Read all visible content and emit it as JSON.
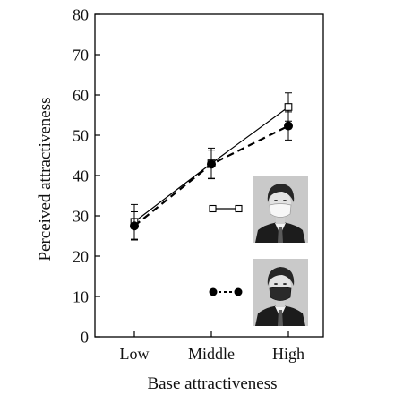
{
  "chart_data": {
    "type": "line",
    "xlabel": "Base attractiveness",
    "ylabel": "Perceived attractiveness",
    "categories": [
      "Low",
      "Middle",
      "High"
    ],
    "ylim": [
      0,
      80
    ],
    "yticks": [
      0,
      10,
      20,
      30,
      40,
      50,
      60,
      70,
      80
    ],
    "grid": false,
    "legend_placement": "lower-right (marker samples beside face photos)",
    "series": [
      {
        "key": "white-mask",
        "line_style": "solid",
        "marker": "open-square",
        "legend_image": "face photo wearing a white mask",
        "values": [
          28.5,
          43,
          57
        ],
        "error": [
          4.3,
          3.8,
          3.5
        ]
      },
      {
        "key": "black-mask",
        "line_style": "dashed",
        "marker": "filled-circle",
        "legend_image": "face photo wearing a black mask",
        "values": [
          27.5,
          42.8,
          52.3
        ],
        "error": [
          3.5,
          3.5,
          3.5
        ]
      }
    ],
    "colors": {
      "ink": "#000000",
      "photo_bg": "#c9c9c9"
    }
  }
}
